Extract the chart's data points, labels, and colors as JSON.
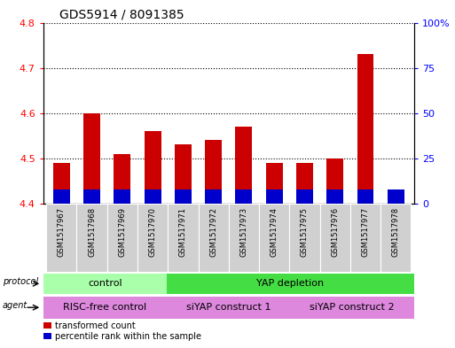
{
  "title": "GDS5914 / 8091385",
  "samples": [
    "GSM1517967",
    "GSM1517968",
    "GSM1517969",
    "GSM1517970",
    "GSM1517971",
    "GSM1517972",
    "GSM1517973",
    "GSM1517974",
    "GSM1517975",
    "GSM1517976",
    "GSM1517977",
    "GSM1517978"
  ],
  "transformed_count": [
    4.49,
    4.6,
    4.51,
    4.56,
    4.53,
    4.54,
    4.57,
    4.49,
    4.49,
    4.5,
    4.73,
    4.43
  ],
  "percentile_rank": [
    8,
    8,
    8,
    8,
    8,
    8,
    8,
    8,
    8,
    8,
    8,
    8
  ],
  "ylim_left": [
    4.4,
    4.8
  ],
  "ylim_right": [
    0,
    100
  ],
  "yticks_left": [
    4.4,
    4.5,
    4.6,
    4.7,
    4.8
  ],
  "yticks_right": [
    0,
    25,
    50,
    75,
    100
  ],
  "bar_color_red": "#cc0000",
  "bar_color_blue": "#0000cc",
  "bar_width": 0.55,
  "protocol_control_color": "#aaffaa",
  "protocol_yap_color": "#44dd44",
  "agent_color": "#dd88dd",
  "grid_color": "black",
  "sample_bg_color": "#d0d0d0",
  "legend_items": [
    {
      "label": "transformed count",
      "color": "#cc0000"
    },
    {
      "label": "percentile rank within the sample",
      "color": "#0000cc"
    }
  ]
}
